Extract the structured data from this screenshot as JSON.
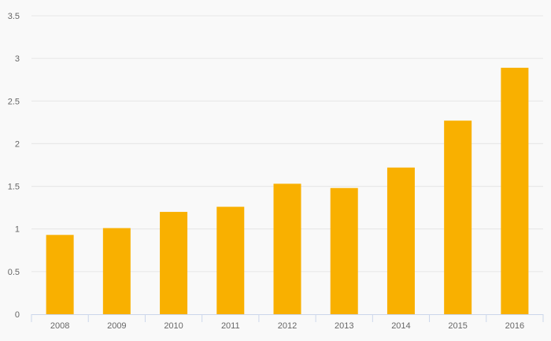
{
  "chart_data": {
    "type": "bar",
    "categories": [
      "2008",
      "2009",
      "2010",
      "2011",
      "2012",
      "2013",
      "2014",
      "2015",
      "2016"
    ],
    "values": [
      0.93,
      1.01,
      1.2,
      1.26,
      1.53,
      1.48,
      1.72,
      2.27,
      2.89
    ],
    "title": "",
    "xlabel": "",
    "ylabel": "",
    "ylim": [
      0,
      3.5
    ],
    "yticks": [
      "0",
      "0.5",
      "1",
      "1.5",
      "2",
      "2.5",
      "3",
      "3.5"
    ],
    "grid": true,
    "legend": "none",
    "colors": {
      "bar": "#f9b000",
      "grid": "#e6e6e6",
      "axis": "#ccd6eb",
      "background": "#f9f9f9"
    }
  }
}
